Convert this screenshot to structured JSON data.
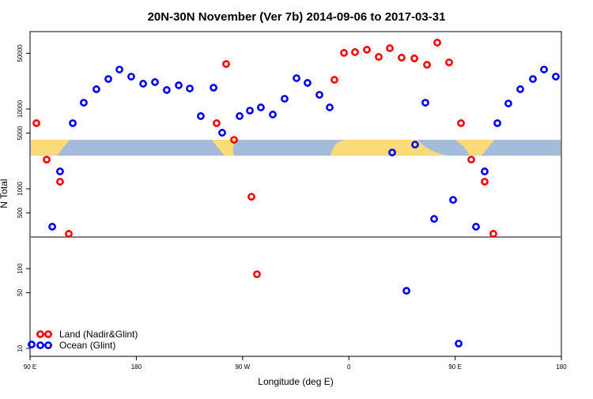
{
  "chart_data": {
    "type": "scatter",
    "title": "20N-30N November (Ver 7b)   2014-09-06 to 2017-03-31",
    "x_label": "Longitude (deg E)",
    "y_label": "N Total",
    "log_y": true,
    "legend": "bottom-left",
    "xlim": [
      90,
      540
    ],
    "xticks": [
      {
        "value": 90,
        "label": "90 E"
      },
      180,
      {
        "value": 270,
        "label": "90 W"
      },
      {
        "value": 360,
        "label": "0"
      },
      {
        "value": 450,
        "label": "90 E"
      },
      {
        "value": 540,
        "label": "180"
      }
    ],
    "ylim": [
      7.96,
      93300
    ],
    "yticks": [
      10,
      50,
      100,
      500,
      1000,
      5000,
      10000,
      50000
    ],
    "series": [
      {
        "name": "Land (Nadir&Glint)",
        "color": "#ff0000",
        "x": [
          95.4,
          104.1,
          115.4,
          122.8,
          248.0,
          256.1,
          262.8,
          277.5,
          282.2,
          347.8,
          355.9,
          365.2,
          375.3,
          385.3,
          394.7,
          404.7,
          415.5,
          426.2,
          434.9,
          444.9,
          455.0,
          463.7,
          475.0,
          482.4
        ],
        "values": [
          6650,
          2323,
          1228,
          273,
          6650,
          36650,
          4110,
          796,
          85,
          23230,
          50470,
          51640,
          55340,
          44980,
          57810,
          44060,
          43060,
          35810,
          67920,
          38370,
          6650,
          2323,
          1228,
          273
        ]
      },
      {
        "name": "Ocean (Glint)",
        "color": "#0000ff",
        "x": [
          91.3,
          108.8,
          115.4,
          126.2,
          135.5,
          146.2,
          156.3,
          165.7,
          175.7,
          185.8,
          195.8,
          205.8,
          215.9,
          225.3,
          234.6,
          245.4,
          252.7,
          267.5,
          276.2,
          285.5,
          295.6,
          305.6,
          315.7,
          325.0,
          335.1,
          343.8,
          396.7,
          408.8,
          416.1,
          424.8,
          432.2,
          448.3,
          453.0,
          467.7,
          475.0,
          485.8,
          495.1,
          505.2,
          515.9,
          525.3,
          535.3
        ],
        "values": [
          11.2,
          335,
          1652,
          6650,
          12000,
          17700,
          23770,
          31260,
          25460,
          20750,
          21730,
          17300,
          19820,
          18080,
          8150,
          18500,
          5050,
          8150,
          9550,
          10470,
          8530,
          13450,
          24330,
          21240,
          15070,
          10470,
          2853,
          52.8,
          3580,
          12000,
          420,
          726,
          11.5,
          335,
          1652,
          6650,
          11730,
          17700,
          23770,
          31260,
          25460
        ]
      }
    ]
  }
}
